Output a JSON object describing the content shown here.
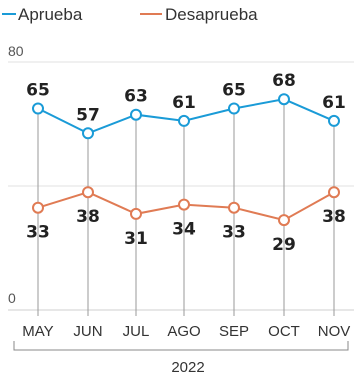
{
  "chart_data": {
    "type": "line",
    "categories": [
      "MAY",
      "JUN",
      "JUL",
      "AGO",
      "SEP",
      "OCT",
      "NOV"
    ],
    "group_label": "2022",
    "series": [
      {
        "name": "Aprueba",
        "values": [
          65,
          57,
          63,
          61,
          65,
          68,
          61
        ],
        "color": "#1a9bd7"
      },
      {
        "name": "Desaprueba",
        "values": [
          33,
          38,
          31,
          34,
          33,
          29,
          38
        ],
        "color": "#e07b54"
      }
    ],
    "ylim": [
      0,
      80
    ],
    "yticks": [
      "0",
      "80"
    ],
    "grid": true,
    "legend": "top-left"
  }
}
